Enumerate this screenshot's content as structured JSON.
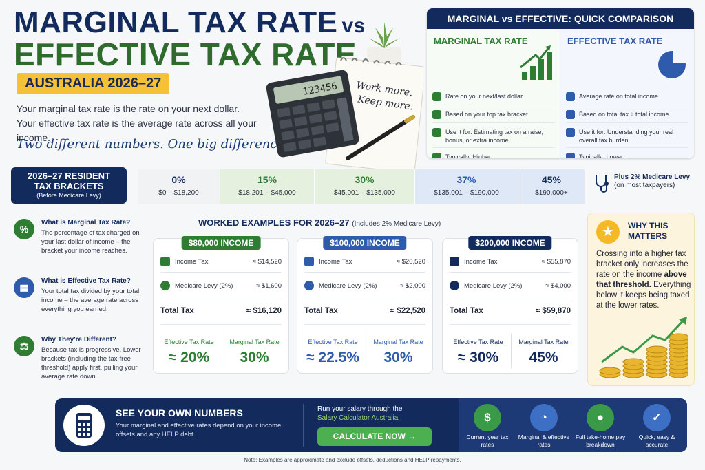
{
  "header": {
    "title_line1": "MARGINAL TAX RATE",
    "title_vs": "vs",
    "title_line2": "EFFECTIVE TAX RATE",
    "badge": "AUSTRALIA 2026–27",
    "intro_1": "Your marginal tax rate is the rate on your next dollar.",
    "intro_2": "Your effective tax rate is the average rate across all your income.",
    "tagline": "Two different numbers. One big difference.",
    "note_line1": "Work more.",
    "note_line2": "Keep more.",
    "calculator_display": "123456"
  },
  "comparison": {
    "title": "MARGINAL vs EFFECTIVE: QUICK COMPARISON",
    "marginal": {
      "title": "MARGINAL TAX RATE",
      "rows": [
        "Rate on your next/last dollar",
        "Based on your top tax bracket",
        "Use it for: Estimating tax on a raise, bonus, or extra income",
        "Typically: Higher"
      ]
    },
    "effective": {
      "title": "EFFECTIVE TAX RATE",
      "rows": [
        "Average rate on total income",
        "Based on total tax ÷ total income",
        "Use it for: Understanding your real overall tax burden",
        "Typically: Lower"
      ]
    }
  },
  "brackets": {
    "label_1": "2026–27 RESIDENT",
    "label_2": "TAX BRACKETS",
    "label_3": "(Before Medicare Levy)",
    "items": [
      {
        "rate": "0%",
        "range": "$0 – $18,200"
      },
      {
        "rate": "15%",
        "range": "$18,201 – $45,000"
      },
      {
        "rate": "30%",
        "range": "$45,001 – $135,000"
      },
      {
        "rate": "37%",
        "range": "$135,001 – $190,000"
      },
      {
        "rate": "45%",
        "range": "$190,000+"
      }
    ],
    "medicare_1": "Plus 2% Medicare Levy",
    "medicare_2": "(on most taxpayers)"
  },
  "explainers": [
    {
      "icon": "%",
      "heading": "What is Marginal Tax Rate?",
      "body": "The percentage of tax charged on your last dollar of income – the bracket your income reaches."
    },
    {
      "icon": "▦",
      "heading": "What is Effective Tax Rate?",
      "body": "Your total tax divided by your total income – the average rate across everything you earned."
    },
    {
      "icon": "⚖",
      "heading": "Why They're Different?",
      "body": "Because tax is progressive. Lower brackets (including the tax-free threshold) apply first, pulling your average rate down."
    }
  ],
  "examples": {
    "title": "WORKED EXAMPLES FOR 2026–27",
    "subtitle": "(Includes 2% Medicare Levy)",
    "income_tax_label": "Income Tax",
    "medicare_label": "Medicare Levy (2%)",
    "total_label": "Total Tax",
    "effective_label": "Effective Tax Rate",
    "marginal_label": "Marginal Tax Rate",
    "cards": [
      {
        "heading": "$80,000 INCOME",
        "income_tax": "≈ $14,520",
        "medicare": "≈ $1,600",
        "total": "≈ $16,120",
        "effective": "≈ 20%",
        "marginal": "30%"
      },
      {
        "heading": "$100,000 INCOME",
        "income_tax": "≈ $20,520",
        "medicare": "≈ $2,000",
        "total": "≈ $22,520",
        "effective": "≈ 22.5%",
        "marginal": "30%"
      },
      {
        "heading": "$200,000 INCOME",
        "income_tax": "≈ $55,870",
        "medicare": "≈ $4,000",
        "total": "≈ $59,870",
        "effective": "≈ 30%",
        "marginal": "45%"
      }
    ]
  },
  "why": {
    "heading_1": "WHY THIS",
    "heading_2": "MATTERS",
    "body_1": "Crossing into a higher tax bracket only increases the rate on the income ",
    "body_bold": "above that threshold.",
    "body_2": " Everything below it keeps being taxed at the lower rates."
  },
  "banner": {
    "heading": "SEE YOUR OWN NUMBERS",
    "body": "Your marginal and effective rates depend on your income, offsets and any HELP debt.",
    "run_text": "Run your salary through the",
    "run_link": "Salary Calculator Australia",
    "cta": "CALCULATE NOW",
    "features": [
      {
        "icon": "$",
        "label": "Current year tax rates",
        "color": "#3a9a48"
      },
      {
        "icon": "◔",
        "label": "Marginal & effective rates",
        "color": "#3d6fc4"
      },
      {
        "icon": "●",
        "label": "Full take-home pay breakdown",
        "color": "#3a9a48"
      },
      {
        "icon": "✓",
        "label": "Quick, easy & accurate",
        "color": "#3d6fc4"
      }
    ]
  },
  "footnote": "Note: Examples are approximate and exclude offsets, deductions and HELP repayments.",
  "colors": {
    "navy": "#132a5c",
    "green": "#2e7d32",
    "gold": "#f5c136"
  }
}
